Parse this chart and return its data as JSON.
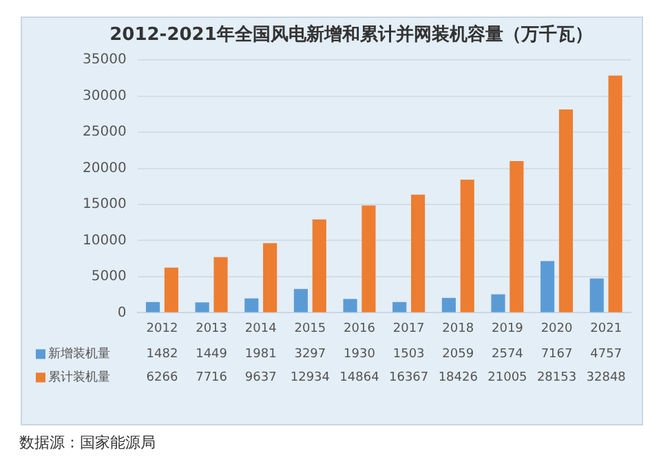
{
  "chart_data": {
    "type": "bar",
    "title": "2012-2021年全国风电新增和累计并网装机容量（万千瓦）",
    "categories": [
      "2012",
      "2013",
      "2014",
      "2015",
      "2016",
      "2017",
      "2018",
      "2019",
      "2020",
      "2021"
    ],
    "series": [
      {
        "name": "新增装机量",
        "color": "#5b9bd5",
        "values": [
          1482,
          1449,
          1981,
          3297,
          1930,
          1503,
          2059,
          2574,
          7167,
          4757
        ]
      },
      {
        "name": "累计装机量",
        "color": "#ed7d31",
        "values": [
          6266,
          7716,
          9637,
          12934,
          14864,
          16367,
          18426,
          21005,
          28153,
          32848
        ]
      }
    ],
    "ylim": [
      0,
      35000
    ],
    "yticks": [
      0,
      5000,
      10000,
      15000,
      20000,
      25000,
      30000,
      35000
    ],
    "grid": "y",
    "legend": "bottom",
    "data_labels": true,
    "annotations": [
      "数据源：国家能源局"
    ]
  }
}
